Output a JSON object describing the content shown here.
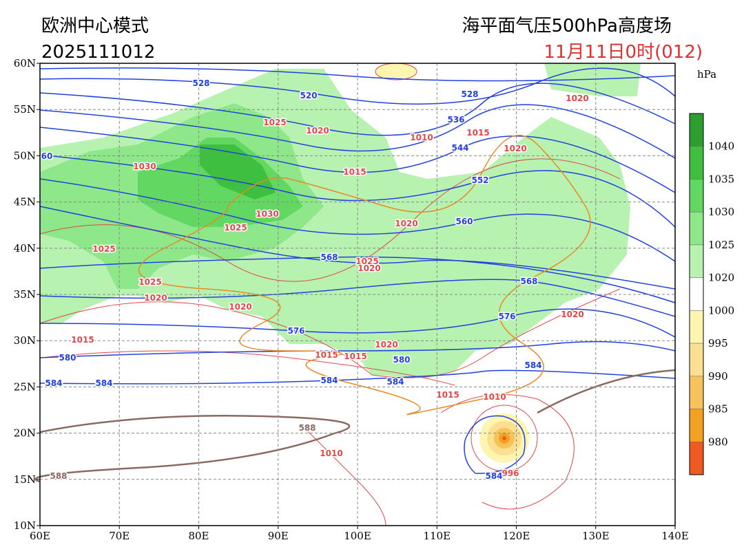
{
  "header": {
    "model": "欧洲中心模式",
    "run": "2025111012",
    "title": "海平面气压500hPa高度场",
    "valid": "11月11日0时(012)"
  },
  "axes": {
    "lat_labels": [
      "10N",
      "15N",
      "20N",
      "25N",
      "30N",
      "35N",
      "40N",
      "45N",
      "50N",
      "55N",
      "60N"
    ],
    "lon_labels": [
      "60E",
      "70E",
      "80E",
      "90E",
      "100E",
      "110E",
      "120E",
      "130E",
      "140E"
    ]
  },
  "colorbar": {
    "unit": "hPa",
    "labels": [
      "1040",
      "1035",
      "1030",
      "1025",
      "1020",
      "1000",
      "995",
      "990",
      "985",
      "980"
    ],
    "colors": [
      "#2e9e2e",
      "#3fbf3f",
      "#62d862",
      "#8ee88a",
      "#b8f2b0",
      "#ffffff",
      "#fef6b0",
      "#fbe092",
      "#f6c25a",
      "#f4a020",
      "#f05a20"
    ]
  },
  "height_labels": [
    "528",
    "520",
    "528",
    "536",
    "544",
    "552",
    "560",
    "568",
    "568",
    "576",
    "576",
    "580",
    "580",
    "584",
    "584",
    "584",
    "584",
    "584",
    "584",
    "60"
  ],
  "ridge_labels": [
    "588",
    "588"
  ],
  "pressure_labels": [
    "1025",
    "1020",
    "1010",
    "1015",
    "1020",
    "1020",
    "1030",
    "1015",
    "1030",
    "1025",
    "1020",
    "1025",
    "1025",
    "1020",
    "1025",
    "1020",
    "1020",
    "1020",
    "1015",
    "1020",
    "1015",
    "1015",
    "1015",
    "1010",
    "1010",
    "996"
  ]
}
